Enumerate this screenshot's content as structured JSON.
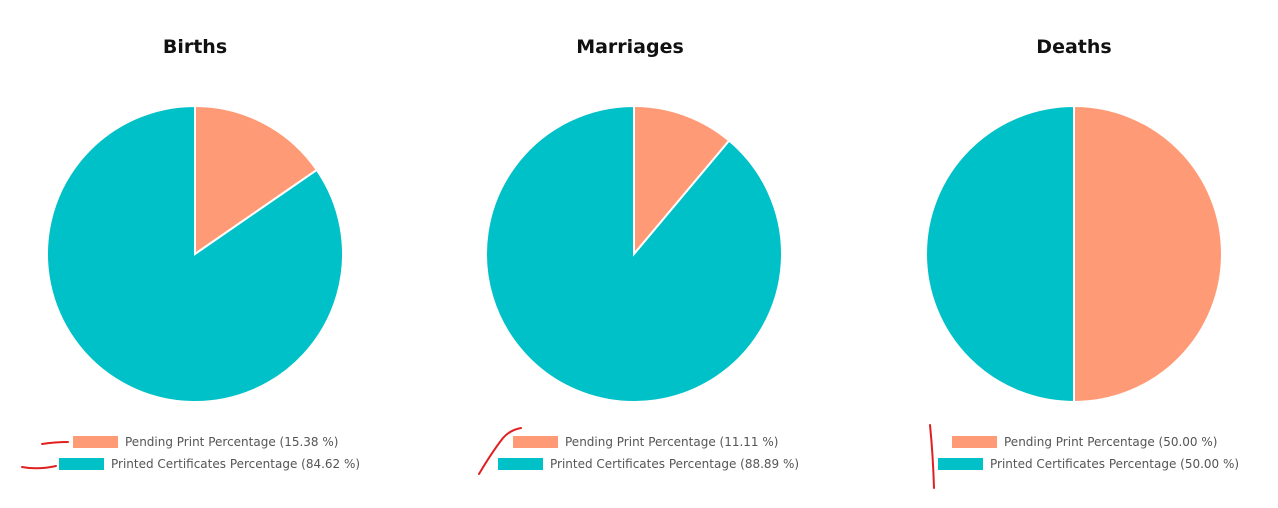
{
  "colors": {
    "pending": "#ff9a76",
    "printed": "#00c0c8",
    "annotation": "#e02020"
  },
  "chart_data": [
    {
      "type": "pie",
      "title": "Births",
      "slices": [
        {
          "label": "Pending Print Percentage",
          "value": 15.38,
          "legend": "Pending Print Percentage (15.38 %)",
          "color": "#ff9a76"
        },
        {
          "label": "Printed Certificates Percentage",
          "value": 84.62,
          "legend": "Printed Certificates Percentage (84.62 %)",
          "color": "#00c0c8"
        }
      ],
      "legend_position": "bottom"
    },
    {
      "type": "pie",
      "title": "Marriages",
      "slices": [
        {
          "label": "Pending Print Percentage",
          "value": 11.11,
          "legend": "Pending Print Percentage (11.11 %)",
          "color": "#ff9a76"
        },
        {
          "label": "Printed Certificates Percentage",
          "value": 88.89,
          "legend": "Printed Certificates Percentage (88.89 %)",
          "color": "#00c0c8"
        }
      ],
      "legend_position": "bottom"
    },
    {
      "type": "pie",
      "title": "Deaths",
      "slices": [
        {
          "label": "Pending Print Percentage",
          "value": 50.0,
          "legend": "Pending Print Percentage (50.00 %)",
          "color": "#ff9a76"
        },
        {
          "label": "Printed Certificates Percentage",
          "value": 50.0,
          "legend": "Printed Certificates Percentage (50.00 %)",
          "color": "#00c0c8"
        }
      ],
      "legend_position": "bottom"
    }
  ]
}
